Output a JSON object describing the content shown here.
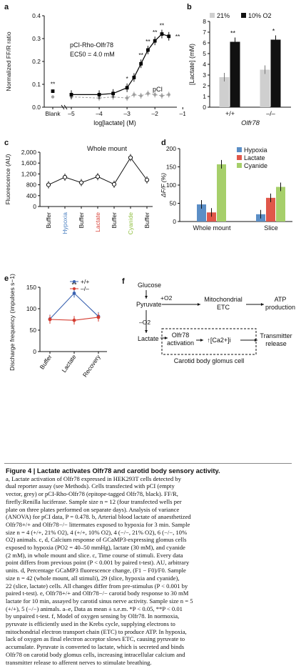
{
  "panels": {
    "a": {
      "label": "a",
      "construct": "pCI-Rho-Olfr78",
      "ec50": "EC50 = 4.0 mM",
      "pci_label": "pCI",
      "sig": "**"
    },
    "b": {
      "label": "b",
      "legend": [
        "21%",
        "10% O2"
      ],
      "xgroup": "Olfr78",
      "sig": [
        "**",
        "*"
      ]
    },
    "c": {
      "label": "c",
      "title": "Whole mount"
    },
    "d": {
      "label": "d"
    },
    "e": {
      "label": "e",
      "sig": "**"
    },
    "f": {
      "label": "f",
      "glucose": "Glucose",
      "pyruvate": "Pyruvate",
      "plus_o2": "+O2",
      "minus_o2": "–O2",
      "mito": [
        "Mitochondrial",
        "ETC"
      ],
      "atp": [
        "ATP",
        "production"
      ],
      "lactate": "Lactate",
      "olfr78": [
        "Olfr78",
        "activation"
      ],
      "calcium": "↑[Ca2+]i",
      "transmitter": [
        "Transmitter",
        "release"
      ],
      "cell": "Carotid body glomus cell"
    }
  },
  "chart_data": [
    {
      "panel": "a",
      "type": "scatter",
      "xlabel": "log[lactate] (M)",
      "ylabel": "Normalized FF/R ratio",
      "xlim": [
        -5.6,
        -1.0
      ],
      "ylim": [
        0,
        0.4
      ],
      "yticks": [
        0,
        0.1,
        0.2,
        0.3,
        0.4
      ],
      "xticks": [
        "Blank",
        "–5",
        "–4",
        "–3",
        "–2",
        "–1"
      ],
      "series": [
        {
          "name": "pCI-Rho-Olfr78",
          "color": "#000000",
          "blank": 0.07,
          "x": [
            -5,
            -4,
            -3.5,
            -3,
            -2.75,
            -2.5,
            -2.25,
            -2,
            -1.75,
            -1.5
          ],
          "y": [
            0.055,
            0.055,
            0.06,
            0.085,
            0.13,
            0.19,
            0.25,
            0.29,
            0.32,
            0.31
          ]
        },
        {
          "name": "pCI",
          "color": "#a0a0a0",
          "blank": 0.045,
          "x": [
            -5,
            -4,
            -3.5,
            -3,
            -2.75,
            -2.5,
            -2.25,
            -2,
            -1.75,
            -1.5
          ],
          "y": [
            0.045,
            0.04,
            0.045,
            0.04,
            0.055,
            0.05,
            0.06,
            0.055,
            0.05,
            0.055
          ]
        }
      ]
    },
    {
      "panel": "b",
      "type": "bar",
      "ylabel": "[Lactate] (mM)",
      "ylim": [
        0,
        8
      ],
      "yticks": [
        0,
        1,
        2,
        3,
        4,
        5,
        6,
        7,
        8
      ],
      "categories": [
        "+/+",
        "–/–"
      ],
      "series": [
        {
          "name": "21%",
          "color": "#cfcfcf",
          "values": [
            2.8,
            3.5
          ]
        },
        {
          "name": "10% O2",
          "color": "#111111",
          "values": [
            6.1,
            6.3
          ]
        }
      ]
    },
    {
      "panel": "c",
      "type": "line",
      "title": "Whole mount",
      "ylabel": "Fluorescence (AU)",
      "ylim": [
        0,
        2000
      ],
      "yticks": [
        "0",
        "400",
        "800",
        "1,200",
        "1,600",
        "2,000"
      ],
      "categories": [
        "Buffer",
        "Hypoxia",
        "Buffer",
        "Lactate",
        "Buffer",
        "Cyanide",
        "Buffer"
      ],
      "category_colors": [
        "#111111",
        "#4a7fc0",
        "#111111",
        "#d9433a",
        "#111111",
        "#8fbf3f",
        "#111111"
      ],
      "values": [
        800,
        1080,
        880,
        1100,
        820,
        1800,
        980
      ]
    },
    {
      "panel": "d",
      "type": "bar",
      "ylabel": "ΔF/F (%)",
      "ylim": [
        0,
        200
      ],
      "yticks": [
        0,
        50,
        100,
        150,
        200
      ],
      "categories": [
        "Whole mount",
        "Slice"
      ],
      "series": [
        {
          "name": "Hypoxia",
          "color": "#5b8ec6",
          "values": [
            47,
            20
          ]
        },
        {
          "name": "Lactate",
          "color": "#e0574a",
          "values": [
            25,
            65
          ]
        },
        {
          "name": "Cyanide",
          "color": "#a6cf6a",
          "values": [
            157,
            95
          ]
        }
      ]
    },
    {
      "panel": "e",
      "type": "line",
      "ylabel": "Discharge frequency (impulses s−1)",
      "ylim": [
        0,
        150
      ],
      "yticks": [
        0,
        50,
        100,
        150
      ],
      "categories": [
        "Buffer",
        "Lactate",
        "Recovery"
      ],
      "series": [
        {
          "name": "+/+",
          "color": "#3a62b0",
          "values": [
            76,
            136,
            82
          ]
        },
        {
          "name": "–/–",
          "color": "#d43b2f",
          "values": [
            75,
            73,
            80
          ]
        }
      ]
    }
  ],
  "caption": {
    "title": "Figure 4 | Lactate activates Olfr78 and carotid body sensory activity.",
    "lines": [
      "a, Lactate activation of Olfr78 expressed in HEK293T cells detected by",
      "dual reporter assay (see Methods). Cells transfected with pCI (empty",
      "vector, grey) or pCI-Rho-Olfr78 (epitope-tagged Olfr78, black). FF/R,",
      "firefly:Renilla luciferase. Sample size n = 12 (four transfected wells per",
      "plate on three plates performed on separate days). Analysis of variance",
      "(ANOVA) for pCI data, P = 0.478. b, Arterial blood lactate of anaesthetized",
      "Olfr78+/+ and Olfr78−/− littermates exposed to hypoxia for 3 min. Sample",
      "size n = 4 (+/+, 21% O2), 4 (+/+, 10% O2), 4 (−/−, 21% O2), 6 (−/−, 10%",
      "O2) animals. c, d, Calcium response of GCaMP3-expressing glomus cells",
      "exposed to hypoxia (PO2 = 40–50 mmHg), lactate (30 mM), and cyanide",
      "(2 mM), in whole mount and slice. c, Time course of stimuli. Every data",
      "point differs from previous point (P < 0.001 by paired t-test). AU, arbitrary",
      "units. d, Percentage GCaMP3 fluorescence change, (F1 − F0)/F0. Sample",
      "size n = 42 (whole mount, all stimuli), 29 (slice, hypoxia and cyanide),",
      "22 (slice, lactate) cells. All changes differ from pre-stimulus (P < 0.001 by",
      "paired t-test). e, Olfr78+/+ and Olfr78−/− carotid body response to 30 mM",
      "lactate for 10 min, assayed by carotid sinus nerve activity. Sample size n = 5",
      "(+/+), 5 (−/−) animals. a–e, Data as mean ± s.e.m. *P < 0.05, **P < 0.01",
      "by unpaired t-test. f, Model of oxygen sensing by Olfr78. In normoxia,",
      "pyruvate is efficiently used in the Krebs cycle, supplying electrons to",
      "mitochondrial electron transport chain (ETC) to produce ATP. In hypoxia,",
      "lack of oxygen as final electron acceptor slows ETC, causing pyruvate to",
      "accumulate. Pyruvate is converted to lactate, which is secreted and binds",
      "Olfr78 on carotid body glomus cells, increasing intracellular calcium and",
      "transmitter release to afferent nerves to stimulate breathing."
    ]
  }
}
